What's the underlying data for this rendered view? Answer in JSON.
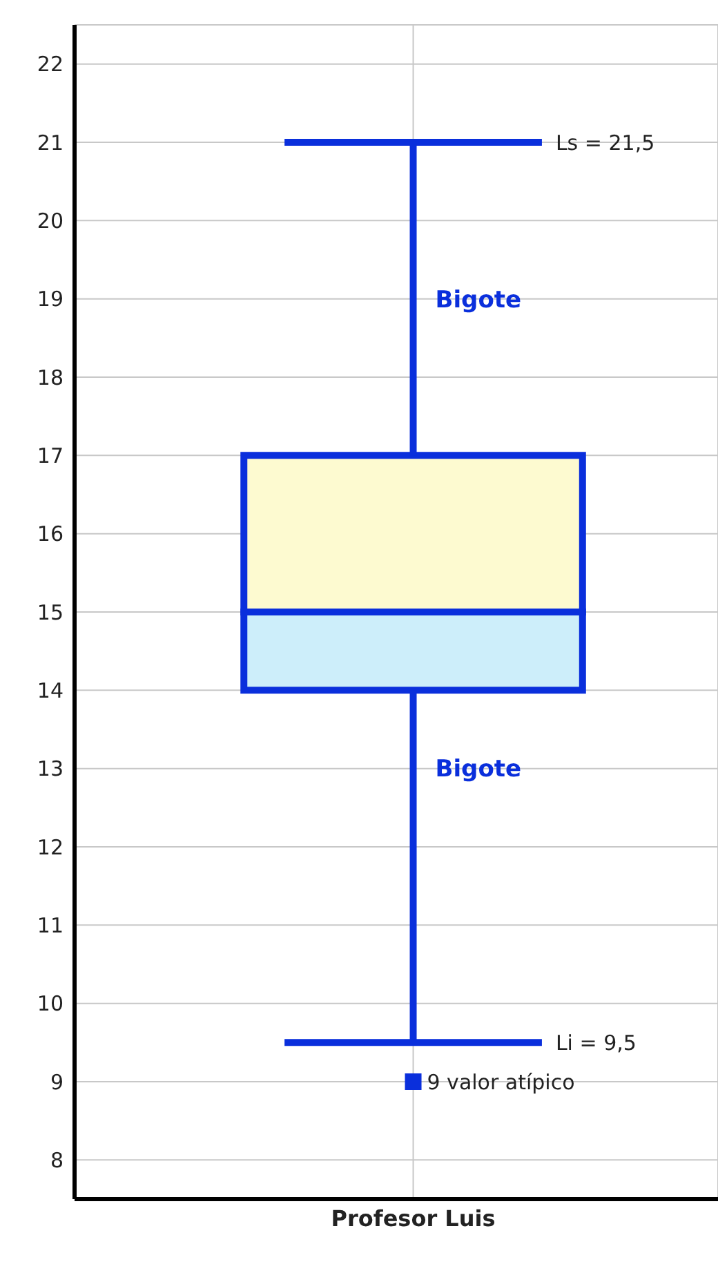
{
  "chart_data": {
    "type": "box",
    "categories": [
      "Profesor  Luis"
    ],
    "series": [
      {
        "color": "#0a2fdc",
        "boxes": [
          {
            "low": 9.5,
            "q1": 14,
            "median": 15,
            "q3": 17,
            "high": 21,
            "outliers": [
              9
            ]
          }
        ]
      }
    ],
    "ylim": [
      7.5,
      22.5
    ],
    "yticks": [
      8,
      9,
      10,
      11,
      12,
      13,
      14,
      15,
      16,
      17,
      18,
      19,
      20,
      21,
      22
    ],
    "grid": true,
    "marker": "square",
    "annotations": [
      "Ls = 21,5",
      "Bigote",
      "Bigote",
      "Li = 9,5",
      "9  valor atípico"
    ]
  }
}
